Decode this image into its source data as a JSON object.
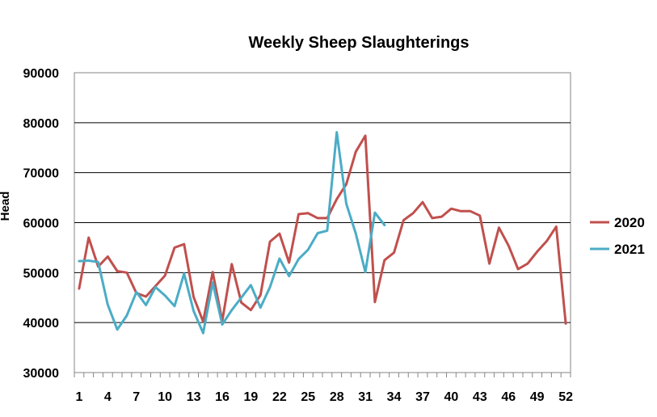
{
  "chart_data": {
    "type": "line",
    "title": "Weekly Sheep Slaughterings",
    "xlabel": "",
    "ylabel": "Head",
    "ylim": [
      30000,
      90000
    ],
    "y_ticks": [
      "30000",
      "40000",
      "50000",
      "60000",
      "70000",
      "80000",
      "90000"
    ],
    "x_range": [
      1,
      52
    ],
    "x_ticks": [
      "1",
      "4",
      "7",
      "10",
      "13",
      "16",
      "19",
      "22",
      "25",
      "28",
      "31",
      "34",
      "37",
      "40",
      "43",
      "46",
      "49",
      "52"
    ],
    "grid": true,
    "legend_placement": "right",
    "series": [
      {
        "name": "2020",
        "color": "#c0504d",
        "x": [
          1,
          2,
          3,
          4,
          5,
          6,
          7,
          8,
          9,
          10,
          11,
          12,
          13,
          14,
          15,
          16,
          17,
          18,
          19,
          20,
          21,
          22,
          23,
          24,
          25,
          26,
          27,
          28,
          29,
          30,
          31,
          32,
          33,
          34,
          35,
          36,
          37,
          38,
          39,
          40,
          41,
          42,
          43,
          44,
          45,
          46,
          47,
          48,
          49,
          50,
          51,
          52
        ],
        "values": [
          46800,
          57000,
          51200,
          53200,
          50300,
          50000,
          45900,
          45200,
          47300,
          49400,
          55000,
          55700,
          45100,
          40200,
          50100,
          40300,
          51700,
          44000,
          42500,
          45500,
          56200,
          57800,
          52000,
          61700,
          61900,
          60900,
          60900,
          64700,
          67700,
          74200,
          77400,
          44100,
          52500,
          54000,
          60500,
          61900,
          64100,
          60900,
          61200,
          62800,
          62300,
          62300,
          61400,
          51800,
          59000,
          55400,
          50700,
          51800,
          54200,
          56300,
          59200,
          39800
        ]
      },
      {
        "name": "2021",
        "color": "#4bacc6",
        "x": [
          1,
          2,
          3,
          4,
          5,
          6,
          7,
          8,
          9,
          10,
          11,
          12,
          13,
          14,
          15,
          16,
          17,
          18,
          19,
          20,
          21,
          22,
          23,
          24,
          25,
          26,
          27,
          28,
          29,
          30,
          31,
          32,
          33
        ],
        "values": [
          52300,
          52400,
          52100,
          43600,
          38600,
          41400,
          46100,
          43500,
          47100,
          45400,
          43300,
          49800,
          42300,
          37900,
          48000,
          39600,
          42500,
          45000,
          47500,
          43000,
          47100,
          52800,
          49300,
          52700,
          54600,
          57900,
          58400,
          78100,
          63800,
          57800,
          50100,
          62000,
          59500
        ]
      }
    ]
  }
}
